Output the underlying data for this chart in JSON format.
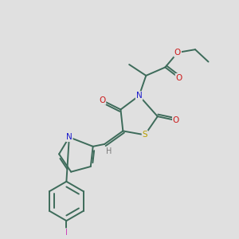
{
  "background_color": "#e0e0e0",
  "bond_color": "#3d6b5a",
  "bond_width": 1.4,
  "atom_colors": {
    "C": "#3d6b5a",
    "N": "#1a1acc",
    "O": "#cc1a1a",
    "S": "#b8a000",
    "I": "#cc44bb",
    "H": "#7a7a7a"
  },
  "figsize": [
    3.0,
    3.0
  ],
  "dpi": 100
}
